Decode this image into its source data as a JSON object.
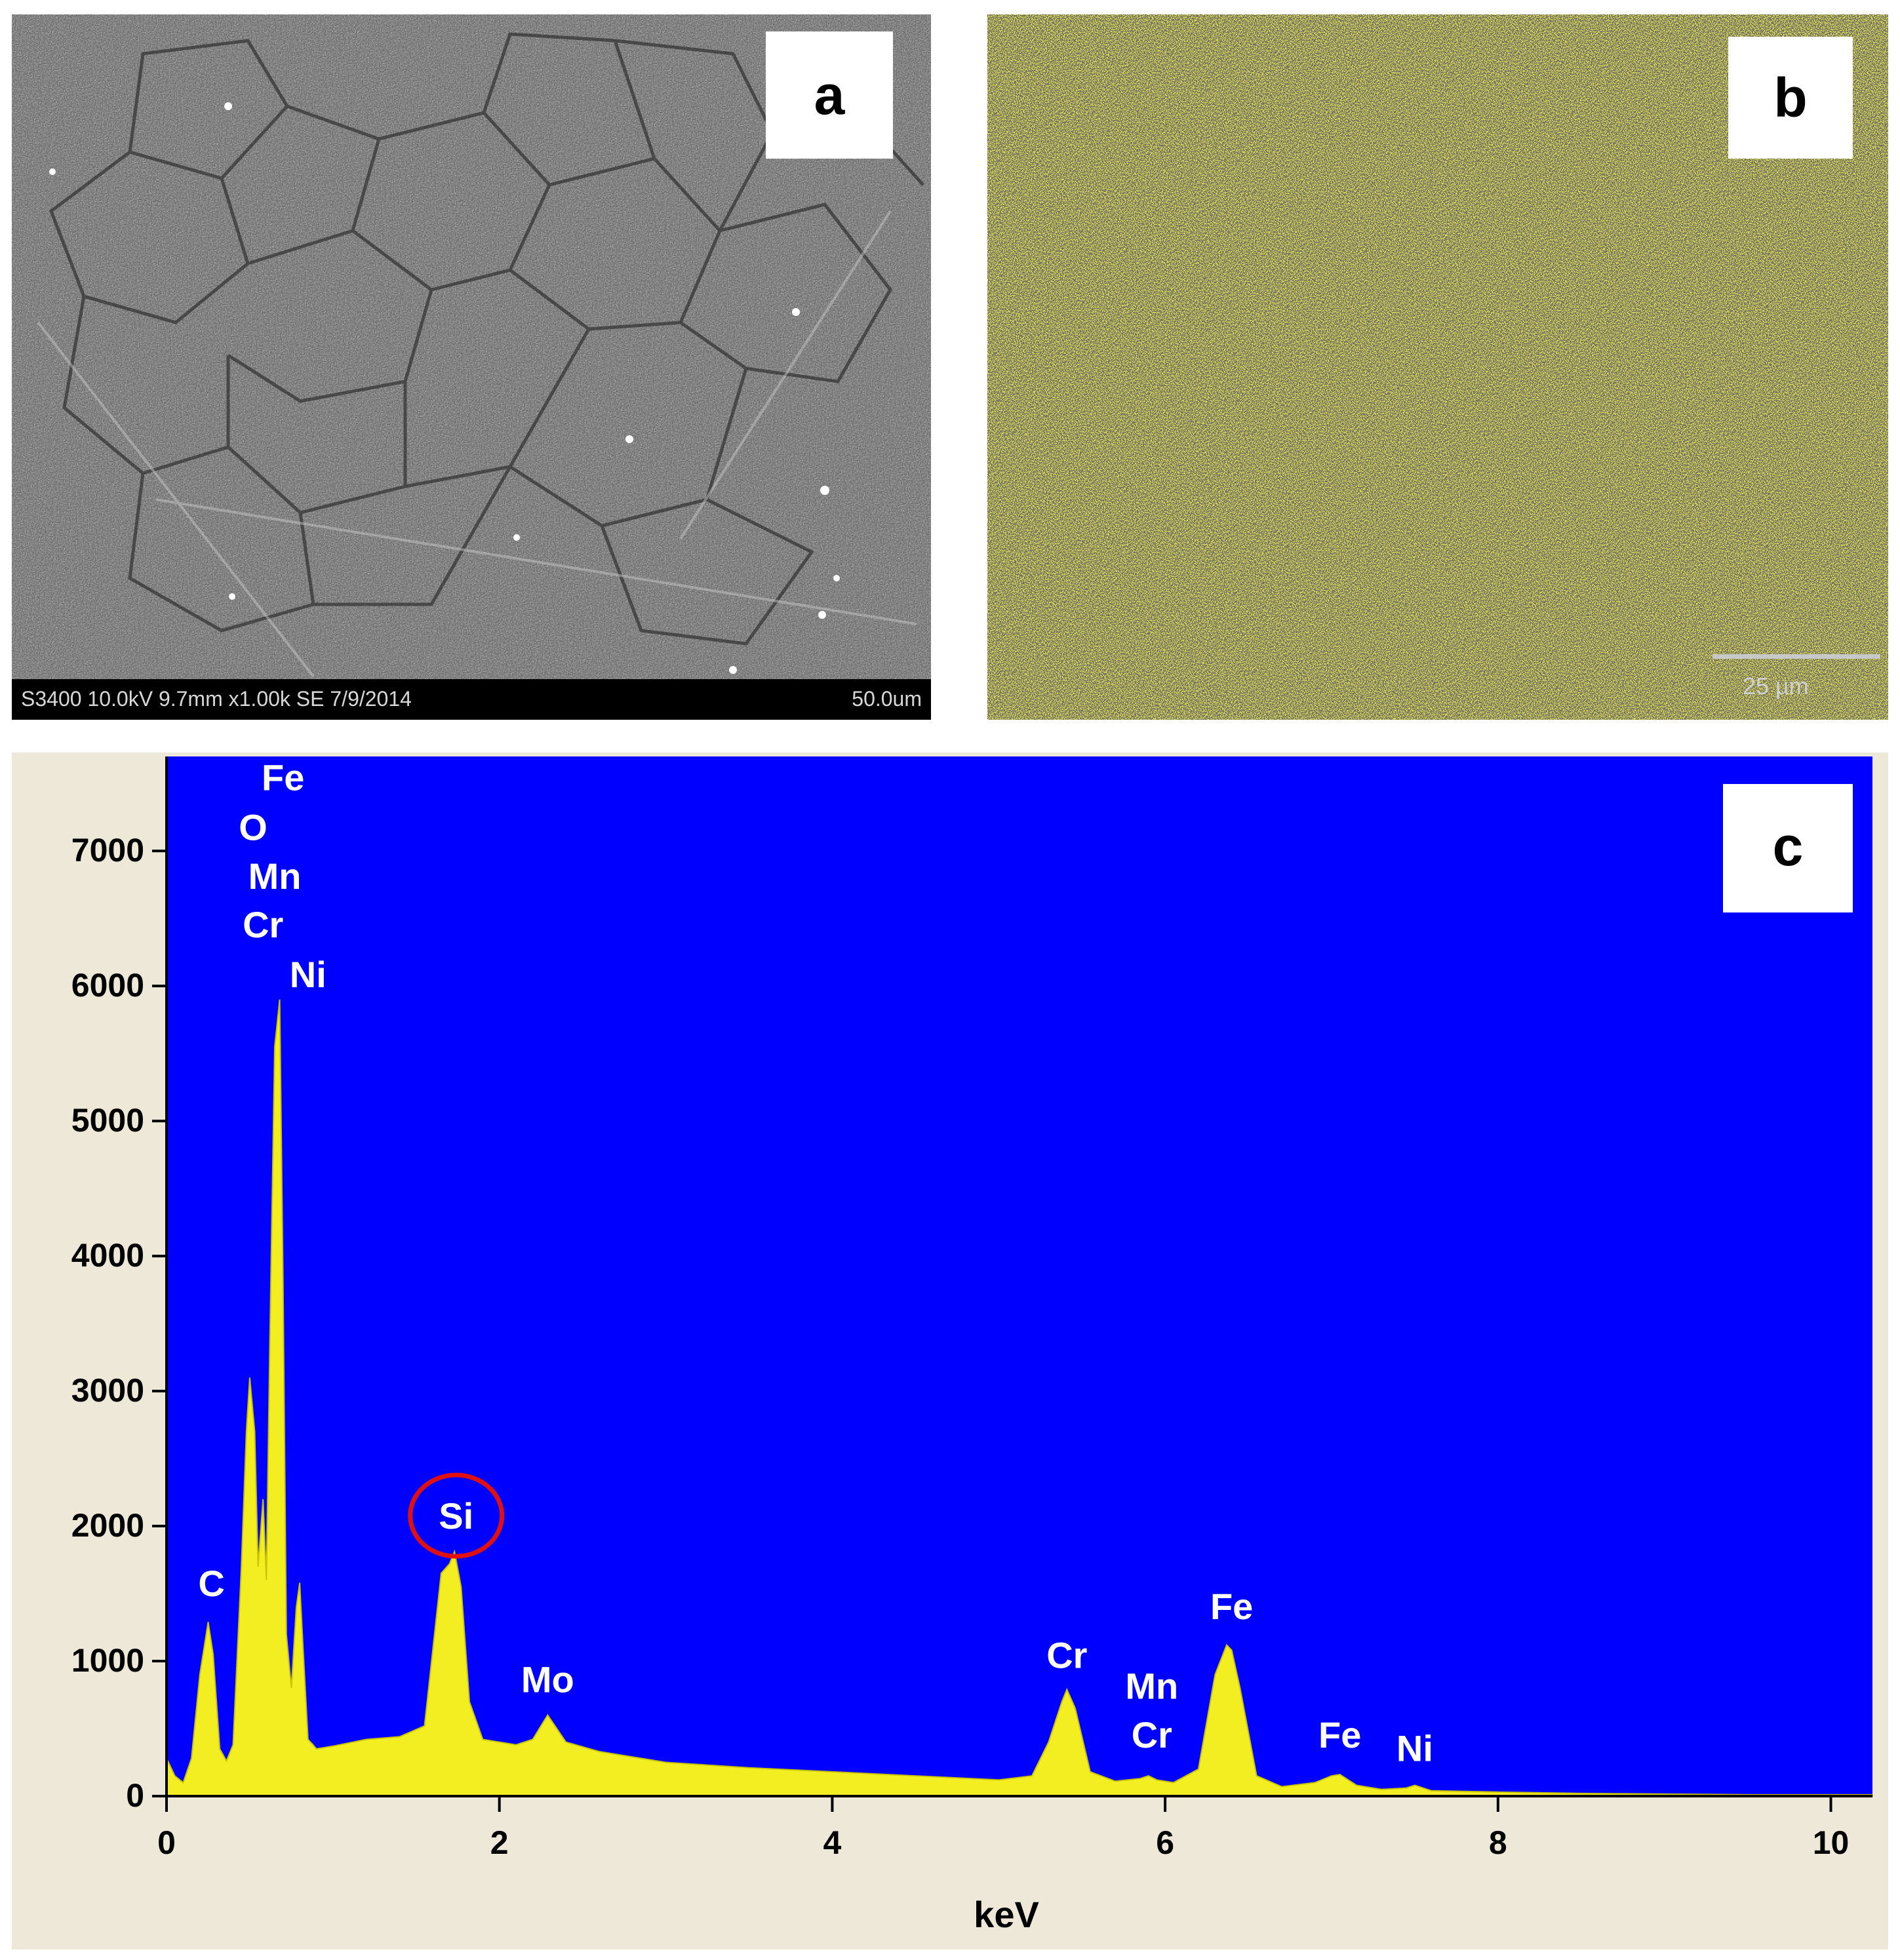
{
  "panel_a": {
    "label": "a",
    "info": "S3400 10.0kV 9.7mm x1.00k SE  7/9/2014",
    "scale": "50.0um"
  },
  "panel_b": {
    "label": "b",
    "scale": "25 µm"
  },
  "panel_c": {
    "label": "c"
  },
  "colors": {
    "plot_bg": "#0000ff",
    "spectrum": "#f2ee22",
    "annotation": "#ffffff",
    "highlight_circle": "#e01010",
    "frame": "#ede8d8"
  },
  "chart_data": {
    "type": "area",
    "title": "",
    "xlabel": "keV",
    "ylabel": "",
    "xlim": [
      0,
      10.25
    ],
    "ylim": [
      0,
      7700
    ],
    "x_ticks": [
      0,
      2,
      4,
      6,
      8,
      10
    ],
    "y_ticks": [
      0,
      1000,
      2000,
      3000,
      4000,
      5000,
      6000,
      7000
    ],
    "grid": false,
    "series": [
      {
        "x": [
          0,
          0.05,
          0.1,
          0.15,
          0.2,
          0.25,
          0.28,
          0.32,
          0.36,
          0.4,
          0.45,
          0.48,
          0.5,
          0.53,
          0.55,
          0.58,
          0.6,
          0.62,
          0.65,
          0.68,
          0.7,
          0.72,
          0.75,
          0.78,
          0.8,
          0.82,
          0.85,
          0.88,
          0.9,
          0.95,
          1.0,
          1.2,
          1.4,
          1.55,
          1.65,
          1.7,
          1.73,
          1.77,
          1.82,
          1.9,
          2.0,
          2.1,
          2.2,
          2.29,
          2.4,
          2.6,
          3.0,
          3.5,
          4.0,
          4.5,
          5.0,
          5.2,
          5.3,
          5.38,
          5.41,
          5.46,
          5.55,
          5.7,
          5.85,
          5.9,
          5.95,
          6.05,
          6.2,
          6.3,
          6.37,
          6.4,
          6.45,
          6.55,
          6.7,
          6.9,
          7.0,
          7.05,
          7.15,
          7.3,
          7.45,
          7.5,
          7.6,
          8.0,
          8.5,
          9.0,
          9.5,
          10.0,
          10.25
        ],
        "values": [
          280,
          150,
          100,
          280,
          900,
          1290,
          1050,
          350,
          260,
          380,
          1700,
          2700,
          3100,
          2700,
          1700,
          2200,
          1600,
          3300,
          5550,
          5900,
          3800,
          1200,
          800,
          1400,
          1580,
          1100,
          420,
          380,
          350,
          360,
          370,
          420,
          440,
          520,
          1650,
          1720,
          1810,
          1550,
          700,
          420,
          400,
          380,
          420,
          600,
          400,
          330,
          250,
          210,
          180,
          150,
          120,
          150,
          400,
          700,
          790,
          650,
          180,
          110,
          130,
          150,
          120,
          100,
          200,
          900,
          1120,
          1080,
          800,
          150,
          70,
          100,
          150,
          160,
          80,
          50,
          60,
          80,
          40,
          30,
          20,
          15,
          10,
          10,
          10
        ]
      }
    ],
    "annotations": [
      {
        "text": "Fe",
        "x": 0.7,
        "y": 7450
      },
      {
        "text": "O",
        "x": 0.52,
        "y": 7080
      },
      {
        "text": "Mn",
        "x": 0.65,
        "y": 6720
      },
      {
        "text": "Cr",
        "x": 0.58,
        "y": 6360
      },
      {
        "text": "Ni",
        "x": 0.85,
        "y": 5990
      },
      {
        "text": "C",
        "x": 0.27,
        "y": 1480
      },
      {
        "text": "Si",
        "x": 1.74,
        "y": 1980,
        "highlighted": true
      },
      {
        "text": "Mo",
        "x": 2.29,
        "y": 770
      },
      {
        "text": "Cr",
        "x": 5.41,
        "y": 950
      },
      {
        "text": "Mn",
        "x": 5.92,
        "y": 720
      },
      {
        "text": "Cr",
        "x": 5.92,
        "y": 360
      },
      {
        "text": "Fe",
        "x": 6.4,
        "y": 1310
      },
      {
        "text": "Fe",
        "x": 7.05,
        "y": 360
      },
      {
        "text": "Ni",
        "x": 7.5,
        "y": 260
      }
    ]
  }
}
